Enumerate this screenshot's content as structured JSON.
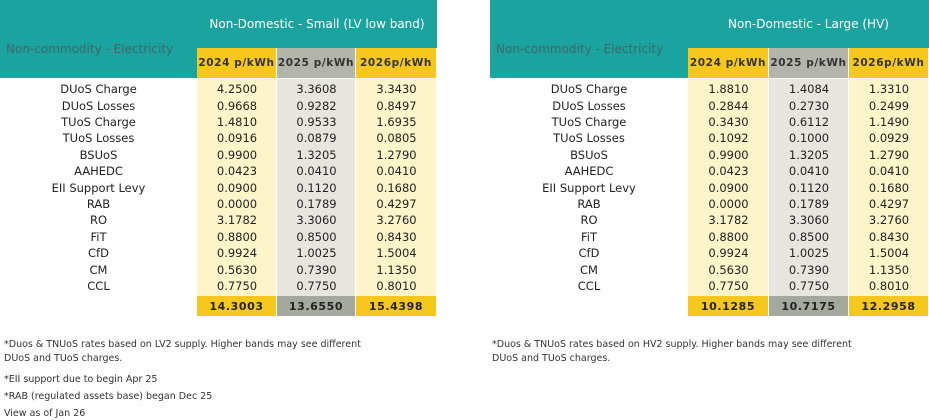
{
  "tables": [
    {
      "title": "Non-Domestic - Small (LV low band)",
      "corner": "Non-commodity - Electricity",
      "columns": [
        "2024 p/kWh",
        "2025 p/kWh",
        "2026p/kWh"
      ],
      "rows": [
        {
          "label": "DUoS Charge",
          "values": [
            "4.2500",
            "3.3608",
            "3.3430"
          ]
        },
        {
          "label": "DUoS Losses",
          "values": [
            "0.9668",
            "0.9282",
            "0.8497"
          ]
        },
        {
          "label": "TUoS Charge",
          "values": [
            "1.4810",
            "0.9533",
            "1.6935"
          ]
        },
        {
          "label": "TUoS Losses",
          "values": [
            "0.0916",
            "0.0879",
            "0.0805"
          ]
        },
        {
          "label": "BSUoS",
          "values": [
            "0.9900",
            "1.3205",
            "1.2790"
          ]
        },
        {
          "label": "AAHEDC",
          "values": [
            "0.0423",
            "0.0410",
            "0.0410"
          ]
        },
        {
          "label": "EII Support Levy",
          "values": [
            "0.0900",
            "0.1120",
            "0.1680"
          ]
        },
        {
          "label": "RAB",
          "values": [
            "0.0000",
            "0.1789",
            "0.4297"
          ]
        },
        {
          "label": "RO",
          "values": [
            "3.1782",
            "3.3060",
            "3.2760"
          ]
        },
        {
          "label": "FiT",
          "values": [
            "0.8800",
            "0.8500",
            "0.8430"
          ]
        },
        {
          "label": "CfD",
          "values": [
            "0.9924",
            "1.0025",
            "1.5004"
          ]
        },
        {
          "label": "CM",
          "values": [
            "0.5630",
            "0.7390",
            "1.1350"
          ]
        },
        {
          "label": "CCL",
          "values": [
            "0.7750",
            "0.7750",
            "0.8010"
          ]
        }
      ],
      "totals": [
        "14.3003",
        "13.6550",
        "15.4398"
      ],
      "notes": [
        "*Duos & TNUoS rates based on LV2 supply. Higher bands may see different DUoS and TUoS charges.",
        "*EII support due to begin Apr 25",
        "*RAB (regulated assets base) began Dec 25",
        "View as of Jan 26"
      ]
    },
    {
      "title": "Non-Domestic - Large (HV)",
      "corner": "Non-commodity - Electricity",
      "columns": [
        "2024 p/kWh",
        "2025 p/kWh",
        "2026p/kWh"
      ],
      "rows": [
        {
          "label": "DUoS Charge",
          "values": [
            "1.8810",
            "1.4084",
            "1.3310"
          ]
        },
        {
          "label": "DUoS Losses",
          "values": [
            "0.2844",
            "0.2730",
            "0.2499"
          ]
        },
        {
          "label": "TUoS Charge",
          "values": [
            "0.3430",
            "0.6112",
            "1.1490"
          ]
        },
        {
          "label": "TUoS Losses",
          "values": [
            "0.1092",
            "0.1000",
            "0.0929"
          ]
        },
        {
          "label": "BSUoS",
          "values": [
            "0.9900",
            "1.3205",
            "1.2790"
          ]
        },
        {
          "label": "AAHEDC",
          "values": [
            "0.0423",
            "0.0410",
            "0.0410"
          ]
        },
        {
          "label": "EII Support Levy",
          "values": [
            "0.0900",
            "0.1120",
            "0.1680"
          ]
        },
        {
          "label": "RAB",
          "values": [
            "0.0000",
            "0.1789",
            "0.4297"
          ]
        },
        {
          "label": "RO",
          "values": [
            "3.1782",
            "3.3060",
            "3.2760"
          ]
        },
        {
          "label": "FiT",
          "values": [
            "0.8800",
            "0.8500",
            "0.8430"
          ]
        },
        {
          "label": "CfD",
          "values": [
            "0.9924",
            "1.0025",
            "1.5004"
          ]
        },
        {
          "label": "CM",
          "values": [
            "0.5630",
            "0.7390",
            "1.1350"
          ]
        },
        {
          "label": "CCL",
          "values": [
            "0.7750",
            "0.7750",
            "0.8010"
          ]
        }
      ],
      "totals": [
        "10.1285",
        "10.7175",
        "12.2958"
      ],
      "notes": [
        "*Duos & TNUoS rates based on HV2 supply. Higher bands may see different DUoS and TUoS charges."
      ]
    }
  ]
}
